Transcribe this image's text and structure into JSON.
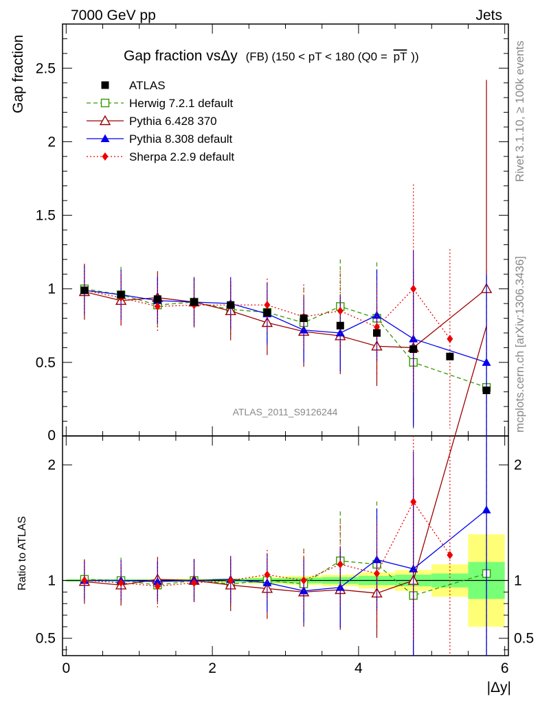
{
  "header": {
    "left": "7000 GeV pp",
    "right": "Jets",
    "side_rivet": "Rivet 3.1.10, ≥ 100k events",
    "side_mcplots": "mcplots.cern.ch [arXiv:1306.3436]",
    "watermark": "ATLAS_2011_S9126244"
  },
  "chart_data": {
    "type": "scatter",
    "title": "Gap fraction vsΔy",
    "title_small": "(FB) (150 < pT < 180 (Q0 =",
    "title_overline": "pT",
    "title_end": "))",
    "xlabel": "|Δy|",
    "ylabel": "Gap fraction",
    "ratio_ylabel": "Ratio to ATLAS",
    "xlim": [
      -0.05,
      6.05
    ],
    "ylim": [
      0,
      2.8
    ],
    "ratio_ylim": [
      0.35,
      2.25
    ],
    "x_ticks": [
      0,
      2,
      4,
      6
    ],
    "y_ticks": [
      0.5,
      1,
      1.5,
      2,
      2.5
    ],
    "y_tick_labels": [
      "0.5",
      "1",
      "1.5",
      "2",
      "2.5"
    ],
    "y_zero_label": "0",
    "ratio_ticks": [
      0.5,
      1,
      2
    ],
    "ratio_tick_labels": [
      "0.5",
      "1",
      "2"
    ],
    "x": [
      0.25,
      0.75,
      1.25,
      1.75,
      2.25,
      2.75,
      3.25,
      3.75,
      4.25,
      4.75,
      5.25,
      5.75
    ],
    "bin_edges": [
      0,
      0.5,
      1,
      1.5,
      2,
      2.5,
      3,
      3.5,
      4,
      4.5,
      5,
      5.5,
      6
    ],
    "data_band_1sigma": [
      0.01,
      0.01,
      0.01,
      0.01,
      0.015,
      0.02,
      0.025,
      0.03,
      0.04,
      0.05,
      0.06,
      0.16
    ],
    "data_band_2sigma": [
      0.01,
      0.01,
      0.012,
      0.015,
      0.02,
      0.03,
      0.04,
      0.05,
      0.07,
      0.09,
      0.14,
      0.4
    ],
    "legend_position": "top-left",
    "series": [
      {
        "name": "ATLAS",
        "color": "#000000",
        "marker": "square",
        "y": [
          0.99,
          0.96,
          0.93,
          0.91,
          0.89,
          0.84,
          0.8,
          0.75,
          0.7,
          0.59,
          0.54,
          0.31
        ],
        "err": [
          0.01,
          0.01,
          0.01,
          0.01,
          0.01,
          0.01,
          0.01,
          0.01,
          0.01,
          0.01,
          0.01,
          0.02
        ]
      },
      {
        "name": "Herwig 7.2.1 default",
        "color": "#339900",
        "marker": "open-square",
        "dash": "6,4",
        "y": [
          1.0,
          0.96,
          0.89,
          0.91,
          0.86,
          0.84,
          0.77,
          0.88,
          0.8,
          0.5,
          null,
          0.33
        ],
        "err": [
          0.17,
          0.19,
          0.15,
          0.17,
          0.17,
          0.2,
          0.24,
          0.32,
          0.38,
          0.45,
          null,
          0.8
        ]
      },
      {
        "name": "Pythia 6.428 370",
        "color": "#990000",
        "marker": "open-triangle",
        "dash": "",
        "y": [
          0.98,
          0.92,
          0.94,
          0.91,
          0.85,
          0.77,
          0.71,
          0.68,
          0.61,
          0.6,
          null,
          1.0
        ],
        "err": [
          0.19,
          0.17,
          0.18,
          0.17,
          0.2,
          0.22,
          0.24,
          0.26,
          0.27,
          0.53,
          null,
          1.42
        ]
      },
      {
        "name": "Pythia 8.308 default",
        "color": "#0000ee",
        "marker": "triangle",
        "dash": "",
        "y": [
          0.99,
          0.96,
          0.92,
          0.91,
          0.9,
          0.83,
          0.72,
          0.7,
          0.82,
          0.66,
          null,
          0.5
        ],
        "err": [
          0.17,
          0.17,
          0.16,
          0.16,
          0.18,
          0.21,
          0.22,
          0.26,
          0.31,
          0.6,
          null,
          0.6
        ]
      },
      {
        "name": "Sherpa 2.2.9 default",
        "color": "#ee0000",
        "marker": "diamond",
        "dash": "2,3",
        "y": [
          0.99,
          0.94,
          0.88,
          0.89,
          0.89,
          0.89,
          0.81,
          0.85,
          0.74,
          1.0,
          0.66,
          null
        ],
        "err": [
          0.17,
          0.17,
          0.17,
          0.16,
          0.17,
          0.18,
          0.22,
          0.27,
          0.31,
          0.71,
          0.61,
          null
        ]
      }
    ],
    "ratio_series": [
      {
        "name": "Herwig 7.2.1 default",
        "y": [
          1.01,
          1.0,
          0.96,
          1.0,
          0.97,
          1.0,
          0.97,
          1.17,
          1.14,
          0.87,
          null,
          1.06
        ]
      },
      {
        "name": "Pythia 6.428 370",
        "y": [
          0.99,
          0.96,
          1.01,
          1.0,
          0.96,
          0.93,
          0.9,
          0.92,
          0.89,
          1.0,
          null,
          3.2
        ]
      },
      {
        "name": "Pythia 8.308 default",
        "y": [
          1.0,
          1.0,
          0.99,
          1.0,
          1.01,
          0.98,
          0.91,
          0.94,
          1.18,
          1.1,
          null,
          1.61
        ]
      },
      {
        "name": "Sherpa 2.2.9 default",
        "y": [
          1.0,
          0.98,
          0.95,
          0.98,
          1.0,
          1.05,
          1.0,
          1.14,
          1.06,
          1.68,
          1.22,
          null
        ]
      }
    ]
  }
}
